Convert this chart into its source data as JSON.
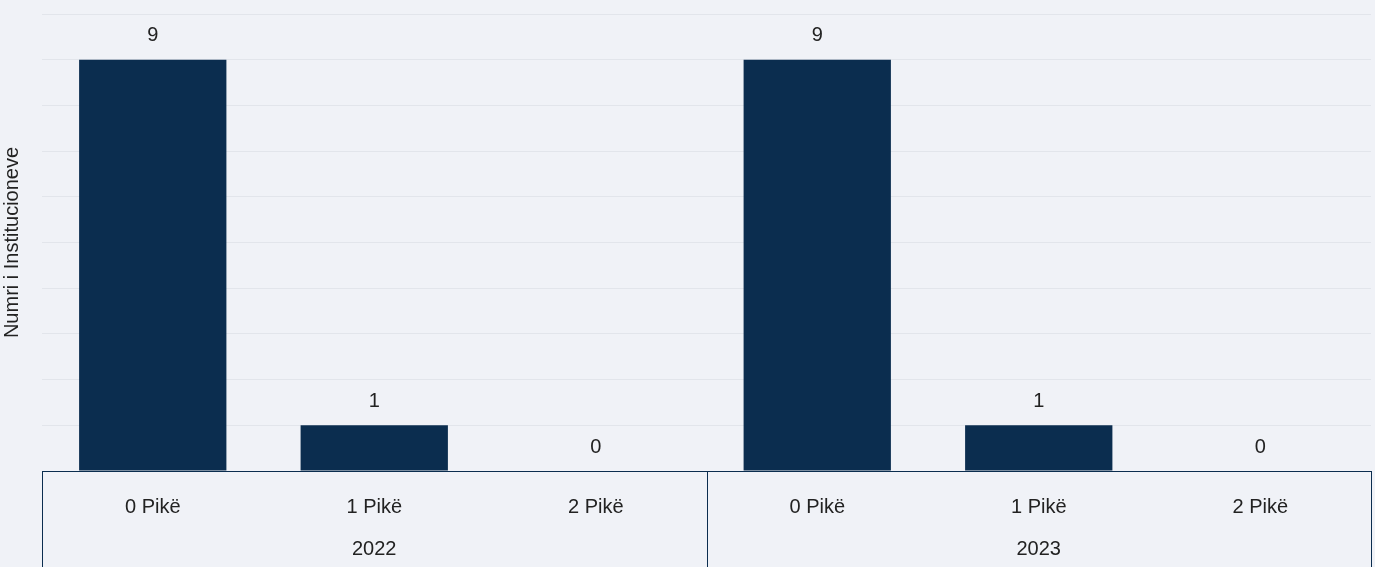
{
  "chart_data": {
    "type": "bar",
    "ylabel": "Numri i Institucioneve",
    "categories": [
      "0 Pikë",
      "1 Pikë",
      "2 Pikë",
      "0 Pikë",
      "1 Pikë",
      "2 Pikë"
    ],
    "values": [
      9,
      1,
      0,
      9,
      1,
      0
    ],
    "color": "#0b2d4f",
    "annotations": [
      "2022",
      "2023"
    ],
    "ylim": [
      0,
      10
    ],
    "yticks": [
      {
        "value": 0,
        "label": null
      },
      {
        "value": 1,
        "label": null
      },
      {
        "value": 2,
        "label": null
      },
      {
        "value": 3,
        "label": null
      },
      {
        "value": 4,
        "label": null
      },
      {
        "value": 5,
        "label": null
      },
      {
        "value": 6,
        "label": null
      },
      {
        "value": 7,
        "label": null
      },
      {
        "value": 8,
        "label": null
      },
      {
        "value": 9,
        "label": null
      },
      {
        "value": 10,
        "label": null
      }
    ],
    "grid": "y",
    "tick_labels": "x",
    "data_labels": true,
    "legend": false
  }
}
